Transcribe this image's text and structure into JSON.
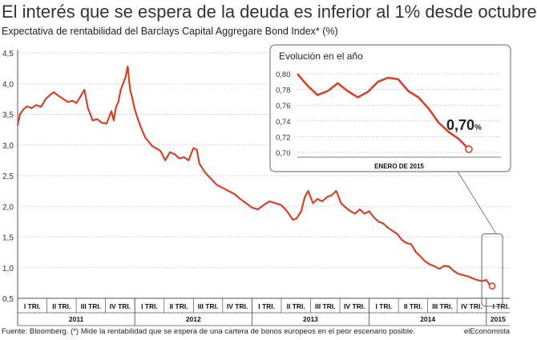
{
  "header": {
    "title": "El interés que se espera de la deuda es inferior al 1% desde octubre",
    "subtitle": "Expectativa de rentabilidad del Barclays Capital Aggregare Bond Index* (%)"
  },
  "footer": {
    "source": "Fuente: Bloomberg. (*) Mide la rentabilidad que se espera de una cartera de bonos europeos en el peor escenario posible.",
    "brand": "elEconomista"
  },
  "colors": {
    "line": "#d2432a",
    "axis": "#555555",
    "grid": "#bbbbbb",
    "inset_border": "#666666"
  },
  "chart_data": [
    {
      "type": "line",
      "title": "",
      "ylabel": "",
      "xlabel": "",
      "ylim": [
        0.5,
        4.5
      ],
      "yticks": [
        "0,5",
        "1,0",
        "1,5",
        "2,0",
        "2,5",
        "3,0",
        "3,5",
        "4,0",
        "4,5"
      ],
      "grid": "horizontal dotted",
      "quarter_labels": [
        "I TRI.",
        "II TRI.",
        "III TRI.",
        "IV TRI.",
        "I TRI.",
        "II TRI.",
        "III TRI.",
        "IV TRI.",
        "I TRI.",
        "II TRI.",
        "III TRI.",
        "IV TRI.",
        "I TRI.",
        "II TRI.",
        "III TRI.",
        "IV TRI.",
        "I TRI."
      ],
      "year_labels": [
        "2011",
        "2012",
        "2013",
        "2014",
        "2015"
      ],
      "series": [
        {
          "values": [
            [
              2011.0,
              3.32
            ],
            [
              2011.02,
              3.5
            ],
            [
              2011.05,
              3.58
            ],
            [
              2011.08,
              3.63
            ],
            [
              2011.12,
              3.6
            ],
            [
              2011.16,
              3.65
            ],
            [
              2011.2,
              3.62
            ],
            [
              2011.24,
              3.75
            ],
            [
              2011.28,
              3.82
            ],
            [
              2011.31,
              3.86
            ],
            [
              2011.35,
              3.8
            ],
            [
              2011.39,
              3.75
            ],
            [
              2011.43,
              3.7
            ],
            [
              2011.47,
              3.72
            ],
            [
              2011.5,
              3.68
            ],
            [
              2011.54,
              3.8
            ],
            [
              2011.57,
              3.9
            ],
            [
              2011.6,
              3.6
            ],
            [
              2011.64,
              3.4
            ],
            [
              2011.68,
              3.42
            ],
            [
              2011.72,
              3.36
            ],
            [
              2011.76,
              3.35
            ],
            [
              2011.8,
              3.55
            ],
            [
              2011.82,
              3.4
            ],
            [
              2011.84,
              3.62
            ],
            [
              2011.86,
              3.7
            ],
            [
              2011.88,
              3.9
            ],
            [
              2011.9,
              4.0
            ],
            [
              2011.92,
              4.1
            ],
            [
              2011.94,
              4.28
            ],
            [
              2011.96,
              3.9
            ],
            [
              2011.98,
              3.75
            ],
            [
              2012.0,
              3.58
            ],
            [
              2012.03,
              3.4
            ],
            [
              2012.06,
              3.25
            ],
            [
              2012.09,
              3.12
            ],
            [
              2012.12,
              3.05
            ],
            [
              2012.15,
              2.98
            ],
            [
              2012.18,
              2.95
            ],
            [
              2012.22,
              2.9
            ],
            [
              2012.26,
              2.75
            ],
            [
              2012.3,
              2.88
            ],
            [
              2012.34,
              2.85
            ],
            [
              2012.38,
              2.78
            ],
            [
              2012.42,
              2.8
            ],
            [
              2012.46,
              2.75
            ],
            [
              2012.5,
              2.95
            ],
            [
              2012.53,
              2.92
            ],
            [
              2012.55,
              2.7
            ],
            [
              2012.6,
              2.55
            ],
            [
              2012.65,
              2.45
            ],
            [
              2012.7,
              2.35
            ],
            [
              2012.75,
              2.3
            ],
            [
              2012.8,
              2.25
            ],
            [
              2012.85,
              2.2
            ],
            [
              2012.9,
              2.12
            ],
            [
              2012.95,
              2.05
            ],
            [
              2013.0,
              1.98
            ],
            [
              2013.05,
              1.95
            ],
            [
              2013.1,
              2.02
            ],
            [
              2013.15,
              2.08
            ],
            [
              2013.2,
              2.05
            ],
            [
              2013.25,
              2.02
            ],
            [
              2013.3,
              1.92
            ],
            [
              2013.35,
              1.78
            ],
            [
              2013.38,
              1.8
            ],
            [
              2013.42,
              1.92
            ],
            [
              2013.45,
              2.15
            ],
            [
              2013.48,
              2.25
            ],
            [
              2013.52,
              2.05
            ],
            [
              2013.56,
              2.12
            ],
            [
              2013.6,
              2.08
            ],
            [
              2013.64,
              2.15
            ],
            [
              2013.68,
              2.18
            ],
            [
              2013.72,
              2.25
            ],
            [
              2013.76,
              2.05
            ],
            [
              2013.8,
              1.98
            ],
            [
              2013.84,
              1.92
            ],
            [
              2013.88,
              1.88
            ],
            [
              2013.92,
              1.95
            ],
            [
              2013.96,
              1.88
            ],
            [
              2014.0,
              1.92
            ],
            [
              2014.04,
              1.82
            ],
            [
              2014.08,
              1.75
            ],
            [
              2014.12,
              1.72
            ],
            [
              2014.16,
              1.65
            ],
            [
              2014.2,
              1.6
            ],
            [
              2014.24,
              1.55
            ],
            [
              2014.28,
              1.45
            ],
            [
              2014.32,
              1.4
            ],
            [
              2014.36,
              1.38
            ],
            [
              2014.4,
              1.25
            ],
            [
              2014.44,
              1.18
            ],
            [
              2014.48,
              1.1
            ],
            [
              2014.52,
              1.05
            ],
            [
              2014.56,
              1.02
            ],
            [
              2014.6,
              0.98
            ],
            [
              2014.64,
              1.03
            ],
            [
              2014.68,
              1.02
            ],
            [
              2014.72,
              0.95
            ],
            [
              2014.76,
              0.9
            ],
            [
              2014.8,
              0.88
            ],
            [
              2014.84,
              0.86
            ],
            [
              2014.88,
              0.83
            ],
            [
              2014.92,
              0.8
            ],
            [
              2014.96,
              0.78
            ],
            [
              2015.0,
              0.8
            ],
            [
              2015.03,
              0.72
            ],
            [
              2015.05,
              0.7
            ]
          ]
        }
      ]
    },
    {
      "type": "line",
      "title": "Evolución en el año",
      "xlabel": "ENERO DE 2015",
      "ylim": [
        0.7,
        0.8
      ],
      "yticks": [
        "0,70",
        "0,72",
        "0,74",
        "0,76",
        "0,78",
        "0,80"
      ],
      "grid": "horizontal dotted",
      "annotation": "0,70",
      "annotation_unit": "%",
      "series": [
        {
          "values": [
            [
              1,
              0.8
            ],
            [
              2,
              0.785
            ],
            [
              3,
              0.773
            ],
            [
              4,
              0.778
            ],
            [
              5,
              0.788
            ],
            [
              6,
              0.778
            ],
            [
              7,
              0.77
            ],
            [
              8,
              0.777
            ],
            [
              9,
              0.79
            ],
            [
              10,
              0.795
            ],
            [
              11,
              0.793
            ],
            [
              12,
              0.778
            ],
            [
              13,
              0.77
            ],
            [
              14,
              0.756
            ],
            [
              15,
              0.738
            ],
            [
              16,
              0.726
            ],
            [
              17,
              0.717
            ],
            [
              18,
              0.704
            ]
          ]
        }
      ]
    }
  ]
}
